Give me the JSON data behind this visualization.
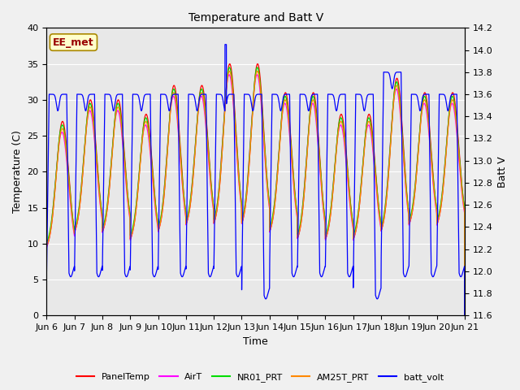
{
  "title": "Temperature and Batt V",
  "xlabel": "Time",
  "ylabel_left": "Temperature (C)",
  "ylabel_right": "Batt V",
  "ylim_left": [
    0,
    40
  ],
  "ylim_right": [
    11.6,
    14.2
  ],
  "xlim": [
    0,
    15
  ],
  "x_tick_labels": [
    "Jun 6",
    "Jun 7",
    "Jun 8",
    "Jun 9",
    "Jun 10",
    "Jun 11",
    "Jun 12",
    "Jun 13",
    "Jun 14",
    "Jun 15",
    "Jun 16",
    "Jun 17",
    "Jun 18",
    "Jun 19",
    "Jun 20",
    "Jun 21"
  ],
  "annotation_text": "EE_met",
  "annotation_box_color": "#ffffcc",
  "annotation_border_color": "#aa8800",
  "plot_bg_color": "#e8e8e8",
  "fig_bg_color": "#f0f0f0",
  "series_colors": {
    "PanelTemp": "#ff0000",
    "AirT": "#ff00ff",
    "NR01_PRT": "#00dd00",
    "AM25T_PRT": "#ff8800",
    "batt_volt": "#0000ff"
  },
  "legend_labels": [
    "PanelTemp",
    "AirT",
    "NR01_PRT",
    "AM25T_PRT",
    "batt_volt"
  ],
  "yticks_left": [
    0,
    5,
    10,
    15,
    20,
    25,
    30,
    35,
    40
  ],
  "yticks_right": [
    11.6,
    11.8,
    12.0,
    12.2,
    12.4,
    12.6,
    12.8,
    13.0,
    13.2,
    13.4,
    13.6,
    13.8,
    14.0,
    14.2
  ],
  "day_peak_temps": [
    27,
    30,
    30,
    28,
    32,
    32,
    35,
    35,
    31,
    31,
    28,
    28,
    33,
    31,
    31
  ],
  "day_min_temps": [
    9,
    11,
    11,
    10,
    11,
    12,
    12,
    12,
    11,
    10,
    10,
    10,
    11,
    12,
    12
  ],
  "batt_day_high": [
    13.6,
    13.6,
    13.6,
    13.6,
    13.6,
    13.6,
    13.6,
    13.6,
    13.6,
    13.6,
    13.6,
    13.6,
    13.8,
    13.6,
    13.6
  ],
  "batt_night_low": [
    12.0,
    12.0,
    12.0,
    12.0,
    12.0,
    12.0,
    12.0,
    11.8,
    12.0,
    12.0,
    12.0,
    11.8,
    12.0,
    12.0,
    12.0
  ],
  "batt_spike_day": 6,
  "batt_spike_val": 14.05
}
